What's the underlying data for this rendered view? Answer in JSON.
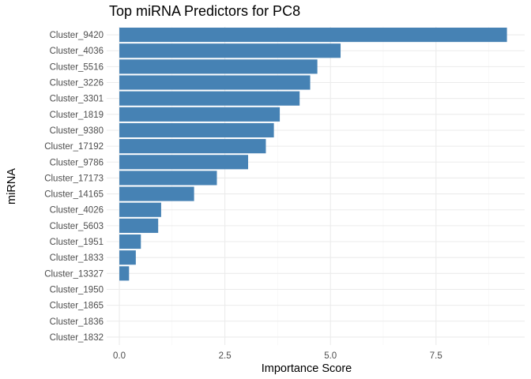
{
  "chart_data": {
    "type": "bar",
    "orientation": "horizontal",
    "title": "Top miRNA Predictors for PC8",
    "xlabel": "Importance Score",
    "ylabel": "miRNA",
    "categories": [
      "Cluster_9420",
      "Cluster_4036",
      "Cluster_5516",
      "Cluster_3226",
      "Cluster_3301",
      "Cluster_1819",
      "Cluster_9380",
      "Cluster_17192",
      "Cluster_9786",
      "Cluster_17173",
      "Cluster_14165",
      "Cluster_4026",
      "Cluster_5603",
      "Cluster_1951",
      "Cluster_1833",
      "Cluster_13327",
      "Cluster_1950",
      "Cluster_1865",
      "Cluster_1836",
      "Cluster_1832"
    ],
    "values": [
      9.18,
      5.24,
      4.69,
      4.52,
      4.27,
      3.8,
      3.66,
      3.47,
      3.05,
      2.31,
      1.77,
      0.99,
      0.92,
      0.51,
      0.39,
      0.23,
      0,
      0,
      0,
      0
    ],
    "xlim": [
      -0.3,
      9.6
    ],
    "xticks": [
      0,
      2.5,
      5,
      7.5
    ],
    "xtick_labels": [
      "0.0",
      "2.5",
      "5.0",
      "7.5"
    ],
    "grid": true,
    "bar_color": "#4682B4"
  }
}
